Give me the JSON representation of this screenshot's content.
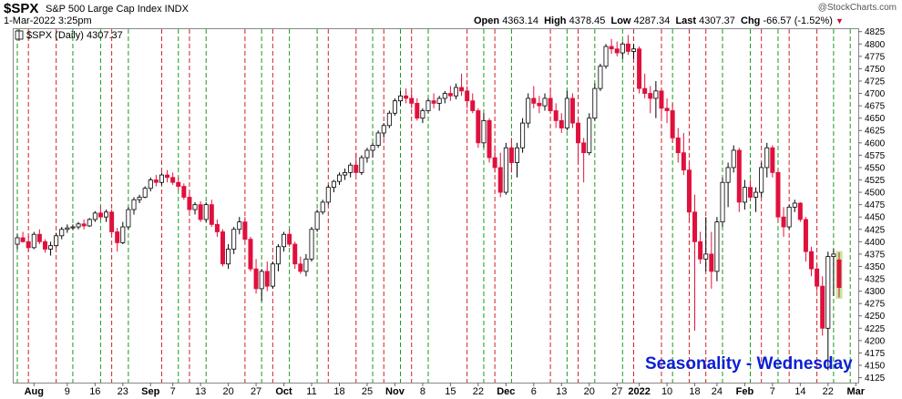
{
  "header": {
    "symbol": "$SPX",
    "name": "S&P 500 Large Cap Index INDX",
    "datetime": "1-Mar-2022 3:25pm",
    "brand": "@StockCharts.com",
    "open_label": "Open",
    "open": "4363.14",
    "high_label": "High",
    "high": "4378.45",
    "low_label": "Low",
    "low": "4287.34",
    "last_label": "Last",
    "last": "4307.37",
    "chg_label": "Chg",
    "chg": "-66.57 (-1.52%)"
  },
  "legend": {
    "text": "$SPX (Daily) 4307.37"
  },
  "annotation": {
    "text": "Seasonality - Wednesday"
  },
  "colors": {
    "up": "#ffffff",
    "down": "#e0103c",
    "wick": "#000000",
    "green_line": "#1a9a1a",
    "red_line": "#d42020",
    "last_highlight": "#c8e6a0"
  },
  "chart_data": {
    "type": "candlestick",
    "title": "$SPX (Daily) 4307.37",
    "ylim": [
      4115,
      4830
    ],
    "yticks": [
      4125,
      4150,
      4175,
      4200,
      4225,
      4250,
      4275,
      4300,
      4325,
      4350,
      4375,
      4400,
      4425,
      4450,
      4475,
      4500,
      4525,
      4550,
      4575,
      4600,
      4625,
      4650,
      4675,
      4700,
      4725,
      4750,
      4775,
      4800,
      4825
    ],
    "xtick_labels": [
      "Aug",
      "9",
      "16",
      "23",
      "Sep",
      "7",
      "13",
      "20",
      "27",
      "Oct",
      "11",
      "18",
      "25",
      "Nov",
      "8",
      "15",
      "22",
      "Dec",
      "6",
      "13",
      "20",
      "27",
      "2022",
      "10",
      "18",
      "24",
      "Feb",
      "7",
      "14",
      "22",
      "Mar"
    ],
    "xtick_index": [
      3,
      9,
      14,
      19,
      24,
      28,
      33,
      38,
      43,
      48,
      53,
      58,
      63,
      68,
      73,
      78,
      83,
      88,
      93,
      98,
      103,
      108,
      112,
      117,
      122,
      126,
      131,
      136,
      141,
      146,
      151
    ],
    "green_lines_index": [
      0,
      10,
      15,
      20,
      29,
      34,
      44,
      49,
      54,
      64,
      69,
      74,
      84,
      89,
      99,
      104,
      109,
      118,
      127,
      132,
      137,
      147,
      150
    ],
    "red_lines_index": [
      2,
      7,
      17,
      26,
      31,
      41,
      46,
      56,
      61,
      66,
      71,
      81,
      86,
      96,
      101,
      111,
      116,
      121,
      124,
      134,
      139,
      144
    ],
    "candles": [
      [
        4395,
        4415,
        4385,
        4408
      ],
      [
        4408,
        4420,
        4398,
        4400
      ],
      [
        4400,
        4412,
        4380,
        4388
      ],
      [
        4388,
        4420,
        4385,
        4415
      ],
      [
        4415,
        4425,
        4395,
        4400
      ],
      [
        4400,
        4405,
        4378,
        4385
      ],
      [
        4385,
        4400,
        4372,
        4392
      ],
      [
        4392,
        4418,
        4388,
        4412
      ],
      [
        4412,
        4430,
        4405,
        4425
      ],
      [
        4425,
        4435,
        4418,
        4428
      ],
      [
        4428,
        4435,
        4424,
        4430
      ],
      [
        4430,
        4440,
        4425,
        4436
      ],
      [
        4436,
        4445,
        4425,
        4432
      ],
      [
        4432,
        4448,
        4430,
        4445
      ],
      [
        4445,
        4462,
        4440,
        4458
      ],
      [
        4458,
        4472,
        4445,
        4450
      ],
      [
        4450,
        4465,
        4440,
        4460
      ],
      [
        4460,
        4465,
        4415,
        4420
      ],
      [
        4420,
        4428,
        4380,
        4398
      ],
      [
        4398,
        4440,
        4395,
        4430
      ],
      [
        4430,
        4470,
        4425,
        4465
      ],
      [
        4465,
        4490,
        4455,
        4485
      ],
      [
        4485,
        4495,
        4478,
        4490
      ],
      [
        4490,
        4512,
        4488,
        4508
      ],
      [
        4508,
        4530,
        4502,
        4525
      ],
      [
        4525,
        4535,
        4512,
        4520
      ],
      [
        4520,
        4540,
        4515,
        4535
      ],
      [
        4535,
        4545,
        4520,
        4530
      ],
      [
        4530,
        4540,
        4515,
        4520
      ],
      [
        4520,
        4530,
        4505,
        4512
      ],
      [
        4512,
        4518,
        4485,
        4490
      ],
      [
        4490,
        4500,
        4460,
        4465
      ],
      [
        4465,
        4480,
        4455,
        4475
      ],
      [
        4475,
        4482,
        4440,
        4445
      ],
      [
        4445,
        4480,
        4440,
        4475
      ],
      [
        4475,
        4485,
        4430,
        4435
      ],
      [
        4435,
        4445,
        4410,
        4420
      ],
      [
        4420,
        4425,
        4350,
        4355
      ],
      [
        4355,
        4395,
        4345,
        4385
      ],
      [
        4385,
        4430,
        4375,
        4425
      ],
      [
        4425,
        4450,
        4415,
        4440
      ],
      [
        4440,
        4450,
        4400,
        4405
      ],
      [
        4405,
        4410,
        4340,
        4345
      ],
      [
        4345,
        4365,
        4295,
        4305
      ],
      [
        4305,
        4345,
        4280,
        4340
      ],
      [
        4340,
        4360,
        4300,
        4310
      ],
      [
        4310,
        4360,
        4305,
        4355
      ],
      [
        4355,
        4395,
        4340,
        4390
      ],
      [
        4390,
        4420,
        4380,
        4415
      ],
      [
        4415,
        4425,
        4390,
        4395
      ],
      [
        4395,
        4400,
        4345,
        4355
      ],
      [
        4355,
        4370,
        4335,
        4340
      ],
      [
        4340,
        4375,
        4330,
        4365
      ],
      [
        4365,
        4430,
        4360,
        4425
      ],
      [
        4425,
        4465,
        4420,
        4460
      ],
      [
        4460,
        4485,
        4455,
        4480
      ],
      [
        4480,
        4515,
        4475,
        4510
      ],
      [
        4510,
        4525,
        4500,
        4522
      ],
      [
        4522,
        4540,
        4515,
        4535
      ],
      [
        4535,
        4548,
        4525,
        4540
      ],
      [
        4540,
        4560,
        4530,
        4555
      ],
      [
        4555,
        4580,
        4535,
        4540
      ],
      [
        4540,
        4575,
        4535,
        4570
      ],
      [
        4570,
        4590,
        4560,
        4585
      ],
      [
        4585,
        4600,
        4570,
        4595
      ],
      [
        4595,
        4625,
        4590,
        4620
      ],
      [
        4620,
        4640,
        4610,
        4635
      ],
      [
        4635,
        4665,
        4630,
        4660
      ],
      [
        4660,
        4690,
        4655,
        4685
      ],
      [
        4685,
        4705,
        4675,
        4695
      ],
      [
        4695,
        4710,
        4680,
        4690
      ],
      [
        4690,
        4705,
        4670,
        4680
      ],
      [
        4680,
        4690,
        4645,
        4650
      ],
      [
        4650,
        4670,
        4640,
        4665
      ],
      [
        4665,
        4690,
        4660,
        4685
      ],
      [
        4685,
        4700,
        4670,
        4680
      ],
      [
        4680,
        4695,
        4665,
        4690
      ],
      [
        4690,
        4705,
        4680,
        4700
      ],
      [
        4700,
        4715,
        4685,
        4695
      ],
      [
        4695,
        4720,
        4688,
        4712
      ],
      [
        4712,
        4740,
        4695,
        4705
      ],
      [
        4705,
        4715,
        4670,
        4685
      ],
      [
        4685,
        4700,
        4660,
        4665
      ],
      [
        4665,
        4670,
        4590,
        4600
      ],
      [
        4600,
        4660,
        4590,
        4645
      ],
      [
        4645,
        4650,
        4560,
        4570
      ],
      [
        4570,
        4595,
        4540,
        4550
      ],
      [
        4550,
        4580,
        4490,
        4500
      ],
      [
        4500,
        4600,
        4495,
        4590
      ],
      [
        4590,
        4610,
        4540,
        4560
      ],
      [
        4560,
        4600,
        4530,
        4590
      ],
      [
        4590,
        4650,
        4580,
        4640
      ],
      [
        4640,
        4700,
        4630,
        4690
      ],
      [
        4690,
        4715,
        4670,
        4680
      ],
      [
        4680,
        4695,
        4660,
        4675
      ],
      [
        4675,
        4700,
        4665,
        4690
      ],
      [
        4690,
        4710,
        4660,
        4665
      ],
      [
        4665,
        4680,
        4630,
        4645
      ],
      [
        4645,
        4660,
        4620,
        4630
      ],
      [
        4630,
        4705,
        4625,
        4690
      ],
      [
        4690,
        4700,
        4630,
        4640
      ],
      [
        4640,
        4650,
        4560,
        4600
      ],
      [
        4600,
        4610,
        4520,
        4580
      ],
      [
        4580,
        4660,
        4575,
        4650
      ],
      [
        4650,
        4720,
        4645,
        4710
      ],
      [
        4710,
        4760,
        4705,
        4755
      ],
      [
        4755,
        4800,
        4750,
        4795
      ],
      [
        4795,
        4810,
        4780,
        4790
      ],
      [
        4790,
        4805,
        4775,
        4782
      ],
      [
        4782,
        4805,
        4770,
        4800
      ],
      [
        4800,
        4818,
        4778,
        4785
      ],
      [
        4785,
        4800,
        4770,
        4790
      ],
      [
        4790,
        4795,
        4700,
        4710
      ],
      [
        4710,
        4740,
        4690,
        4700
      ],
      [
        4700,
        4715,
        4660,
        4690
      ],
      [
        4690,
        4725,
        4650,
        4705
      ],
      [
        4705,
        4710,
        4650,
        4670
      ],
      [
        4670,
        4690,
        4640,
        4665
      ],
      [
        4665,
        4680,
        4600,
        4610
      ],
      [
        4610,
        4630,
        4560,
        4580
      ],
      [
        4580,
        4620,
        4535,
        4545
      ],
      [
        4545,
        4560,
        4440,
        4460
      ],
      [
        4460,
        4495,
        4220,
        4400
      ],
      [
        4400,
        4420,
        4355,
        4365
      ],
      [
        4365,
        4450,
        4340,
        4375
      ],
      [
        4375,
        4420,
        4305,
        4340
      ],
      [
        4340,
        4450,
        4320,
        4440
      ],
      [
        4440,
        4530,
        4430,
        4520
      ],
      [
        4520,
        4560,
        4470,
        4550
      ],
      [
        4550,
        4595,
        4540,
        4585
      ],
      [
        4585,
        4590,
        4460,
        4480
      ],
      [
        4480,
        4525,
        4465,
        4510
      ],
      [
        4510,
        4525,
        4485,
        4490
      ],
      [
        4490,
        4510,
        4460,
        4500
      ],
      [
        4500,
        4560,
        4490,
        4550
      ],
      [
        4550,
        4600,
        4530,
        4590
      ],
      [
        4590,
        4595,
        4530,
        4540
      ],
      [
        4540,
        4545,
        4440,
        4450
      ],
      [
        4450,
        4470,
        4410,
        4430
      ],
      [
        4430,
        4475,
        4425,
        4470
      ],
      [
        4470,
        4485,
        4460,
        4478
      ],
      [
        4478,
        4480,
        4440,
        4445
      ],
      [
        4445,
        4450,
        4360,
        4380
      ],
      [
        4380,
        4390,
        4330,
        4345
      ],
      [
        4345,
        4355,
        4300,
        4310
      ],
      [
        4310,
        4330,
        4210,
        4225
      ],
      [
        4225,
        4380,
        4140,
        4370
      ],
      [
        4370,
        4385,
        4290,
        4375
      ],
      [
        4363.14,
        4378.45,
        4287.34,
        4307.37
      ]
    ]
  }
}
